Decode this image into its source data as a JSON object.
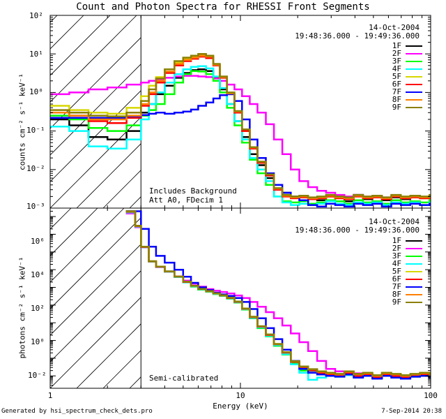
{
  "footer": {
    "left": "Generated by hsi_spectrum_check_dets.pro",
    "right": "7-Sep-2014 20:38"
  },
  "chart_data": [
    {
      "type": "line",
      "title": "Count and Photon Spectra for RHESSI Front Segments",
      "xlabel": "",
      "ylabel": "counts cm⁻² s⁻¹ keV⁻¹",
      "xscale": "log",
      "yscale": "log",
      "xlim": [
        1,
        100
      ],
      "ylim": [
        0.001,
        100
      ],
      "x_tick_labels": [
        "1",
        "10",
        "100"
      ],
      "y_tick_labels": [
        "10⁻³",
        "10⁻²",
        "10⁻¹",
        "10⁰",
        "10¹",
        "10²"
      ],
      "header_lines": [
        "14-Oct-2004",
        "19:48:36.000 - 19:49:36.000"
      ],
      "annotations": [
        "Includes Background",
        "Att A0, FDecim 1"
      ],
      "hatched_region_x": [
        1,
        3
      ],
      "x": [
        1.0,
        1.26,
        1.59,
        2.0,
        2.52,
        3.0,
        3.3,
        3.6,
        4.0,
        4.5,
        5.0,
        5.5,
        6.0,
        6.6,
        7.2,
        7.8,
        8.5,
        9.3,
        10.2,
        11.2,
        12.3,
        13.6,
        15.0,
        16.6,
        18.4,
        20.4,
        22.7,
        25.3,
        28.2,
        31.5,
        35.2,
        39.4,
        44.1,
        49.4,
        55.4,
        62.1,
        69.7,
        78.2,
        87.8,
        98.6
      ],
      "series": [
        {
          "name": "1F",
          "color": "#000000",
          "values": [
            0.2,
            0.14,
            0.07,
            0.06,
            0.1,
            0.3,
            0.5,
            0.9,
            1.5,
            2.4,
            3.2,
            3.8,
            4.0,
            3.6,
            2.4,
            1.2,
            0.5,
            0.18,
            0.07,
            0.025,
            0.013,
            0.006,
            0.003,
            0.0025,
            0.002,
            0.002,
            0.0018,
            0.0016,
            0.002,
            0.0018,
            0.0015,
            0.0022,
            0.0017,
            0.002,
            0.0016,
            0.0019,
            0.0017,
            0.0021,
            0.0018,
            0.002
          ]
        },
        {
          "name": "2F",
          "color": "#ff00ff",
          "values": [
            0.9,
            1.0,
            1.2,
            1.35,
            1.6,
            1.8,
            2.0,
            2.2,
            2.4,
            2.6,
            2.7,
            2.7,
            2.6,
            2.5,
            2.3,
            2.0,
            1.6,
            1.2,
            0.8,
            0.5,
            0.3,
            0.15,
            0.06,
            0.025,
            0.01,
            0.005,
            0.0035,
            0.0028,
            0.0025,
            0.0022,
            0.002,
            0.0022,
            0.002,
            0.0021,
            0.0019,
            0.002,
            0.0018,
            0.0021,
            0.0019,
            0.002
          ]
        },
        {
          "name": "3F",
          "color": "#00ff00",
          "values": [
            0.25,
            0.2,
            0.12,
            0.1,
            0.14,
            0.25,
            0.35,
            0.5,
            0.9,
            1.8,
            3.0,
            3.6,
            3.5,
            3.0,
            2.0,
            1.0,
            0.4,
            0.14,
            0.05,
            0.018,
            0.008,
            0.004,
            0.002,
            0.0015,
            0.0014,
            0.0015,
            0.0013,
            0.0014,
            0.0016,
            0.0015,
            0.0013,
            0.0016,
            0.0014,
            0.0015,
            0.0013,
            0.0016,
            0.0014,
            0.0015,
            0.0014,
            0.0016
          ]
        },
        {
          "name": "4F",
          "color": "#00ffff",
          "values": [
            0.13,
            0.1,
            0.04,
            0.035,
            0.06,
            0.2,
            0.5,
            1.0,
            1.8,
            3.0,
            4.0,
            4.6,
            4.8,
            4.2,
            2.6,
            1.3,
            0.5,
            0.18,
            0.06,
            0.02,
            0.01,
            0.005,
            0.002,
            0.0014,
            0.0012,
            0.0013,
            0.0012,
            0.0013,
            0.0015,
            0.0013,
            0.0012,
            0.0014,
            0.0013,
            0.0014,
            0.0012,
            0.0014,
            0.0013,
            0.0014,
            0.0012,
            0.0014
          ]
        },
        {
          "name": "5F",
          "color": "#d7d700",
          "values": [
            0.45,
            0.35,
            0.3,
            0.28,
            0.4,
            0.8,
            1.5,
            2.5,
            4.0,
            6.0,
            7.5,
            8.5,
            9.0,
            8.0,
            5.0,
            2.4,
            0.9,
            0.3,
            0.1,
            0.035,
            0.015,
            0.007,
            0.003,
            0.002,
            0.0018,
            0.0019,
            0.0017,
            0.0018,
            0.002,
            0.0018,
            0.0017,
            0.002,
            0.0018,
            0.0019,
            0.0017,
            0.002,
            0.0018,
            0.0019,
            0.0018,
            0.002
          ]
        },
        {
          "name": "6F",
          "color": "#ff0000",
          "values": [
            0.3,
            0.25,
            0.18,
            0.16,
            0.22,
            0.45,
            0.9,
            1.8,
            3.2,
            5.0,
            6.5,
            7.5,
            8.5,
            7.8,
            5.0,
            2.4,
            0.9,
            0.3,
            0.1,
            0.035,
            0.015,
            0.007,
            0.003,
            0.002,
            0.0018,
            0.0019,
            0.0017,
            0.0018,
            0.002,
            0.0018,
            0.0017,
            0.002,
            0.0018,
            0.0019,
            0.0017,
            0.002,
            0.0018,
            0.0019,
            0.0018,
            0.002
          ]
        },
        {
          "name": "7F",
          "color": "#0000ff",
          "values": [
            0.22,
            0.22,
            0.22,
            0.22,
            0.24,
            0.26,
            0.28,
            0.3,
            0.28,
            0.3,
            0.32,
            0.36,
            0.45,
            0.55,
            0.7,
            0.85,
            0.9,
            0.6,
            0.2,
            0.06,
            0.02,
            0.008,
            0.004,
            0.0025,
            0.002,
            0.0016,
            0.0012,
            0.0011,
            0.0013,
            0.0012,
            0.0011,
            0.0013,
            0.0012,
            0.0013,
            0.0011,
            0.0013,
            0.0012,
            0.0013,
            0.0012,
            0.0013
          ]
        },
        {
          "name": "8F",
          "color": "#ff8000",
          "values": [
            0.3,
            0.25,
            0.2,
            0.2,
            0.25,
            0.5,
            1.0,
            2.0,
            3.5,
            5.5,
            7.0,
            8.0,
            9.0,
            8.5,
            5.2,
            2.5,
            0.95,
            0.32,
            0.11,
            0.037,
            0.016,
            0.0075,
            0.0032,
            0.0021,
            0.0019,
            0.002,
            0.0018,
            0.0019,
            0.0021,
            0.0019,
            0.0018,
            0.0021,
            0.0019,
            0.002,
            0.0018,
            0.0021,
            0.0019,
            0.002,
            0.0019,
            0.0021
          ]
        },
        {
          "name": "9F",
          "color": "#8b8000",
          "values": [
            0.35,
            0.3,
            0.25,
            0.24,
            0.3,
            0.6,
            1.2,
            2.3,
            4.0,
            6.5,
            8.0,
            9.0,
            10.0,
            9.0,
            5.5,
            2.6,
            1.0,
            0.33,
            0.11,
            0.038,
            0.016,
            0.0075,
            0.0033,
            0.0022,
            0.002,
            0.0021,
            0.0019,
            0.002,
            0.0022,
            0.002,
            0.0019,
            0.0022,
            0.002,
            0.0021,
            0.0019,
            0.0022,
            0.002,
            0.0021,
            0.002,
            0.0022
          ]
        }
      ]
    },
    {
      "type": "line",
      "title": "",
      "xlabel": "Energy (keV)",
      "ylabel": "photons cm⁻² s⁻¹ keV⁻¹",
      "xscale": "log",
      "yscale": "log",
      "xlim": [
        1,
        100
      ],
      "ylim": [
        0.002,
        30000000
      ],
      "x_tick_labels": [
        "1",
        "10",
        "100"
      ],
      "y_tick_labels": [
        "10⁻²",
        "10⁰",
        "10²",
        "10⁴",
        "10⁶"
      ],
      "header_lines": [
        "14-Oct-2004",
        "19:48:36.000 - 19:49:36.000"
      ],
      "annotations": [
        "Semi-calibrated"
      ],
      "hatched_region_x": [
        1,
        3
      ],
      "x": [
        2.5,
        2.8,
        3.0,
        3.3,
        3.6,
        4.0,
        4.5,
        5.0,
        5.5,
        6.0,
        6.6,
        7.2,
        7.8,
        8.5,
        9.3,
        10.2,
        11.2,
        12.3,
        13.6,
        15.0,
        16.6,
        18.4,
        20.4,
        22.7,
        25.3,
        28.2,
        31.5,
        35.2,
        39.4,
        44.1,
        49.4,
        55.4,
        62.1,
        69.7,
        78.2,
        87.8,
        98.6
      ],
      "series": [
        {
          "name": "1F",
          "color": "#000000",
          "values": [
            20000000,
            3000000,
            200000,
            30000,
            15000,
            8000,
            4000,
            2000,
            1200,
            800,
            600,
            450,
            350,
            250,
            150,
            60,
            20,
            6,
            2,
            0.6,
            0.2,
            0.06,
            0.03,
            0.02,
            0.015,
            0.012,
            0.01,
            0.015,
            0.01,
            0.012,
            0.008,
            0.012,
            0.01,
            0.008,
            0.01,
            0.012,
            0.009
          ]
        },
        {
          "name": "2F",
          "color": "#ff00ff",
          "values": [
            15000000,
            2500000,
            180000,
            28000,
            14000,
            7500,
            4200,
            2400,
            1600,
            1100,
            800,
            650,
            550,
            450,
            350,
            250,
            150,
            80,
            40,
            18,
            7,
            2.5,
            0.8,
            0.25,
            0.07,
            0.025,
            0.018,
            0.015,
            0.014,
            0.012,
            0.011,
            0.012,
            0.01,
            0.011,
            0.009,
            0.011,
            0.01
          ]
        },
        {
          "name": "3F",
          "color": "#00ff00",
          "values": [
            18000000,
            2800000,
            190000,
            29000,
            14500,
            7800,
            3900,
            1900,
            1100,
            750,
            560,
            420,
            330,
            230,
            140,
            55,
            18,
            5,
            1.7,
            0.5,
            0.16,
            0.05,
            0.02,
            0.015,
            0.012,
            0.01,
            0.009,
            0.012,
            0.008,
            0.01,
            0.007,
            0.01,
            0.008,
            0.007,
            0.009,
            0.01,
            0.008
          ]
        },
        {
          "name": "4F",
          "color": "#00ffff",
          "values": [
            17000000,
            2700000,
            185000,
            28500,
            14200,
            7700,
            3850,
            1950,
            1150,
            780,
            580,
            430,
            340,
            240,
            145,
            58,
            19,
            5.5,
            1.8,
            0.55,
            0.17,
            0.045,
            0.015,
            0.006,
            0.008,
            0.01,
            0.009,
            0.011,
            0.008,
            0.01,
            0.007,
            0.01,
            0.008,
            0.007,
            0.009,
            0.01,
            0.008
          ]
        },
        {
          "name": "5F",
          "color": "#d7d700",
          "values": [
            19000000,
            2900000,
            195000,
            29500,
            14800,
            7900,
            4050,
            2050,
            1220,
            810,
            610,
            455,
            355,
            255,
            155,
            62,
            21,
            6.2,
            2.1,
            0.62,
            0.21,
            0.065,
            0.032,
            0.022,
            0.016,
            0.013,
            0.011,
            0.016,
            0.011,
            0.013,
            0.009,
            0.013,
            0.011,
            0.009,
            0.011,
            0.013,
            0.01
          ]
        },
        {
          "name": "6F",
          "color": "#ff0000",
          "values": [
            18500000,
            2850000,
            192000,
            29200,
            14600,
            7850,
            4020,
            2020,
            1210,
            805,
            605,
            452,
            352,
            252,
            152,
            61,
            20.5,
            6.1,
            2.05,
            0.61,
            0.205,
            0.062,
            0.031,
            0.021,
            0.015,
            0.012,
            0.01,
            0.015,
            0.01,
            0.012,
            0.008,
            0.012,
            0.01,
            0.008,
            0.01,
            0.012,
            0.009
          ]
        },
        {
          "name": "7F",
          "color": "#0000ff",
          "values": [
            20000000,
            20000000,
            2000000,
            200000,
            60000,
            25000,
            10000,
            4000,
            1800,
            1000,
            700,
            500,
            400,
            330,
            250,
            150,
            60,
            18,
            5,
            1.2,
            0.3,
            0.07,
            0.025,
            0.015,
            0.012,
            0.01,
            0.009,
            0.012,
            0.008,
            0.01,
            0.007,
            0.01,
            0.008,
            0.007,
            0.009,
            0.01,
            0.008
          ]
        },
        {
          "name": "8F",
          "color": "#ff8000",
          "values": [
            19500000,
            2950000,
            197000,
            29800,
            14900,
            7950,
            4080,
            2080,
            1230,
            815,
            615,
            458,
            358,
            258,
            158,
            63,
            21.5,
            6.3,
            2.15,
            0.63,
            0.215,
            0.066,
            0.033,
            0.023,
            0.017,
            0.014,
            0.012,
            0.017,
            0.012,
            0.014,
            0.01,
            0.014,
            0.012,
            0.01,
            0.012,
            0.014,
            0.011
          ]
        },
        {
          "name": "9F",
          "color": "#8b8000",
          "values": [
            20000000,
            3000000,
            200000,
            30000,
            15000,
            8000,
            4100,
            2100,
            1240,
            820,
            620,
            460,
            360,
            260,
            160,
            64,
            22,
            6.4,
            2.2,
            0.64,
            0.22,
            0.067,
            0.034,
            0.024,
            0.018,
            0.015,
            0.013,
            0.018,
            0.013,
            0.015,
            0.011,
            0.015,
            0.013,
            0.011,
            0.013,
            0.015,
            0.012
          ]
        }
      ]
    }
  ]
}
